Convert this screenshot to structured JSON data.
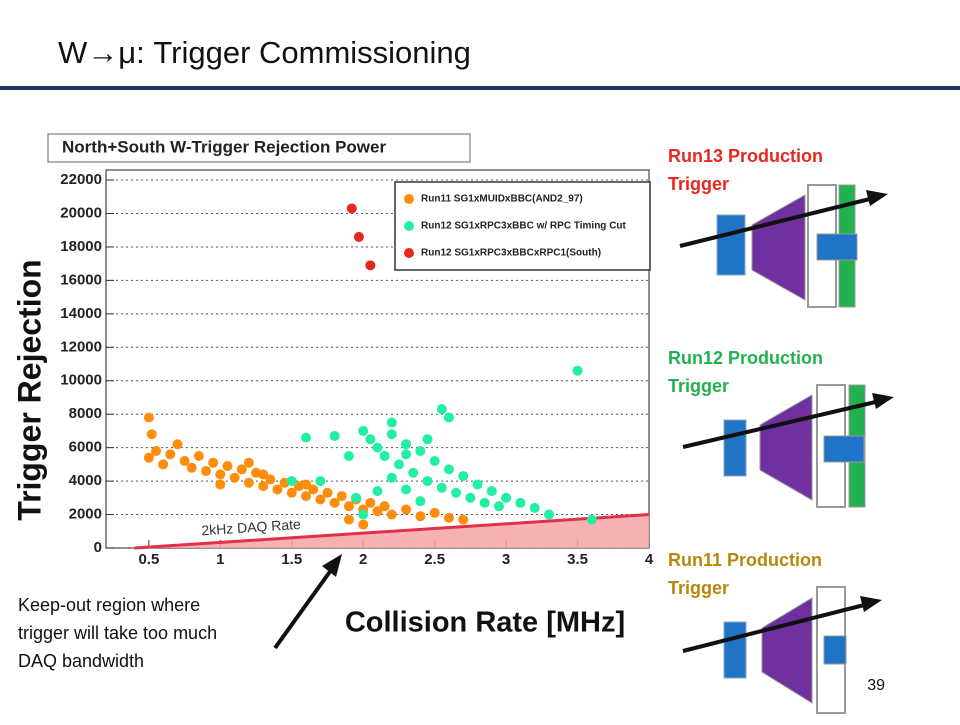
{
  "slide": {
    "title": "W→μ: Trigger Commissioning",
    "note": [
      "Keep-out region where",
      "trigger will take too much",
      "DAQ bandwidth"
    ],
    "page": "39",
    "panels": [
      "Run13 Production Trigger",
      "Run12 Production Trigger",
      "Run11 Production Trigger"
    ]
  },
  "chart_data": {
    "type": "scatter",
    "title": "North+South W-Trigger Rejection Power",
    "xlabel": "Collision Rate [MHz]",
    "ylabel": "Trigger Rejection",
    "xlim": [
      0.2,
      4.0
    ],
    "ylim": [
      0,
      22600
    ],
    "xticks": [
      0.5,
      1,
      1.5,
      2,
      2.5,
      3,
      3.5,
      4
    ],
    "yticks": [
      0,
      2000,
      4000,
      6000,
      8000,
      10000,
      12000,
      14000,
      16000,
      18000,
      20000,
      22000
    ],
    "grid": "y",
    "legend": "upper right",
    "annotations": [
      {
        "text": "2kHz DAQ Rate",
        "x": [
          0.4,
          4
        ],
        "y": [
          0,
          2000
        ],
        "color": "#f7a3a6"
      }
    ],
    "series": [
      {
        "name": "Run11 SG1xMUIDxBBC(AND2_97)",
        "color": "#ff8c0a",
        "x": [
          0.5,
          0.52,
          0.5,
          0.55,
          0.6,
          0.65,
          0.7,
          0.75,
          0.8,
          0.85,
          0.9,
          0.95,
          1.0,
          1.05,
          1.1,
          1.15,
          1.2,
          1.25,
          1.3,
          1.35,
          1.4,
          1.45,
          1.5,
          1.55,
          1.6,
          1.65,
          1.7,
          1.75,
          1.8,
          1.85,
          1.9,
          1.95,
          2.0,
          2.05,
          2.1,
          2.15,
          2.2,
          2.3,
          2.4,
          2.5,
          2.6,
          2.7,
          1.0,
          1.3,
          1.6,
          1.9,
          2.0,
          1.2
        ],
        "y": [
          7800,
          6800,
          5400,
          5800,
          5000,
          5600,
          6200,
          5200,
          4800,
          5500,
          4600,
          5100,
          4400,
          4900,
          4200,
          4700,
          3900,
          4500,
          3700,
          4100,
          3500,
          3900,
          3300,
          3700,
          3100,
          3500,
          2900,
          3300,
          2700,
          3100,
          2500,
          2900,
          2300,
          2700,
          2200,
          2500,
          2000,
          2300,
          1900,
          2100,
          1800,
          1700,
          3800,
          4400,
          3800,
          1700,
          1400,
          5100
        ]
      },
      {
        "name": "Run12 SG1xRPC3xBBC w/ RPC Timing Cut",
        "color": "#22f0a0",
        "x": [
          2.0,
          2.05,
          2.1,
          2.15,
          2.2,
          2.25,
          2.3,
          2.35,
          2.4,
          2.45,
          2.5,
          2.55,
          2.6,
          2.65,
          2.7,
          2.75,
          2.8,
          2.85,
          2.9,
          2.95,
          3.0,
          3.1,
          3.2,
          2.2,
          2.3,
          2.4,
          2.0,
          2.1,
          1.6,
          1.8,
          1.9,
          1.7,
          1.5,
          2.55,
          2.6,
          3.5,
          3.6,
          3.3,
          2.2,
          2.3,
          1.95,
          2.45
        ],
        "y": [
          7000,
          6500,
          6000,
          5500,
          7500,
          5000,
          6200,
          4500,
          5800,
          4000,
          5200,
          3600,
          4700,
          3300,
          4300,
          3000,
          3800,
          2700,
          3400,
          2500,
          3000,
          2700,
          2400,
          4200,
          3500,
          2800,
          2000,
          3400,
          6600,
          6700,
          5500,
          4000,
          4000,
          8300,
          7800,
          10600,
          1700,
          2000,
          6800,
          5600,
          3000,
          6500
        ]
      },
      {
        "name": "Run12 SG1xRPC3xBBCxRPC1(South)",
        "color": "#e8281e",
        "x": [
          1.92,
          1.97,
          2.05
        ],
        "y": [
          20300,
          18600,
          16900
        ]
      }
    ]
  }
}
